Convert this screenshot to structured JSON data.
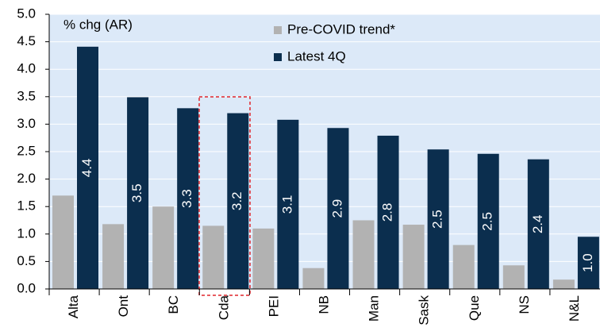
{
  "chart_data": {
    "type": "bar",
    "annotation": "% chg (AR)",
    "categories": [
      "Alta",
      "Ont",
      "BC",
      "Cda",
      "PEI",
      "NB",
      "Man",
      "Sask",
      "Que",
      "NS",
      "N&L"
    ],
    "series": [
      {
        "name": "Pre-COVID trend*",
        "color": "#b2b2b2",
        "values": [
          1.7,
          1.18,
          1.5,
          1.15,
          1.1,
          0.38,
          1.25,
          1.17,
          0.8,
          0.43,
          0.17
        ]
      },
      {
        "name": "Latest 4Q",
        "color": "#0b2e4e",
        "values": [
          4.41,
          3.49,
          3.29,
          3.2,
          3.08,
          2.93,
          2.79,
          2.54,
          2.46,
          2.36,
          0.95
        ],
        "value_labels": [
          "4.4",
          "3.5",
          "3.3",
          "3.2",
          "3.1",
          "2.9",
          "2.8",
          "2.5",
          "2.5",
          "2.4",
          "1.0"
        ]
      }
    ],
    "ylim": [
      0,
      5
    ],
    "yticks": [
      {
        "value": 0,
        "label": "0.0"
      },
      {
        "value": 0.5,
        "label": "0.5"
      },
      {
        "value": 1,
        "label": "1.0"
      },
      {
        "value": 1.5,
        "label": "1.5"
      },
      {
        "value": 2,
        "label": "2.0"
      },
      {
        "value": 2.5,
        "label": "2.5"
      },
      {
        "value": 3,
        "label": "3.0"
      },
      {
        "value": 3.5,
        "label": "3.5"
      },
      {
        "value": 4,
        "label": "4.0"
      },
      {
        "value": 4.5,
        "label": "4.5"
      },
      {
        "value": 5,
        "label": "5.0"
      }
    ],
    "grid": true
  }
}
